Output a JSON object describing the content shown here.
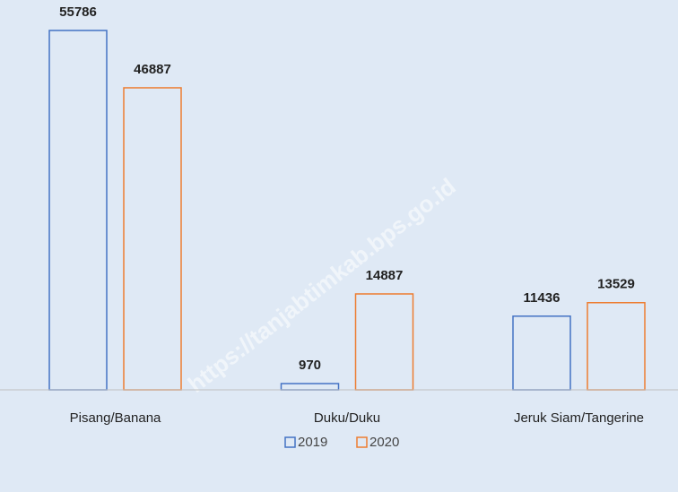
{
  "chart_data": {
    "type": "bar",
    "categories": [
      "Pisang/Banana",
      "Duku/Duku",
      "Jeruk Siam/Tangerine"
    ],
    "series": [
      {
        "name": "2019",
        "color": "#4472c4",
        "values": [
          55786,
          970,
          11436
        ]
      },
      {
        "name": "2020",
        "color": "#ed7d31",
        "values": [
          46887,
          14887,
          13529
        ]
      }
    ],
    "watermark": "https://tanjabtimkab.bps.go.id",
    "legend": "bottom"
  }
}
